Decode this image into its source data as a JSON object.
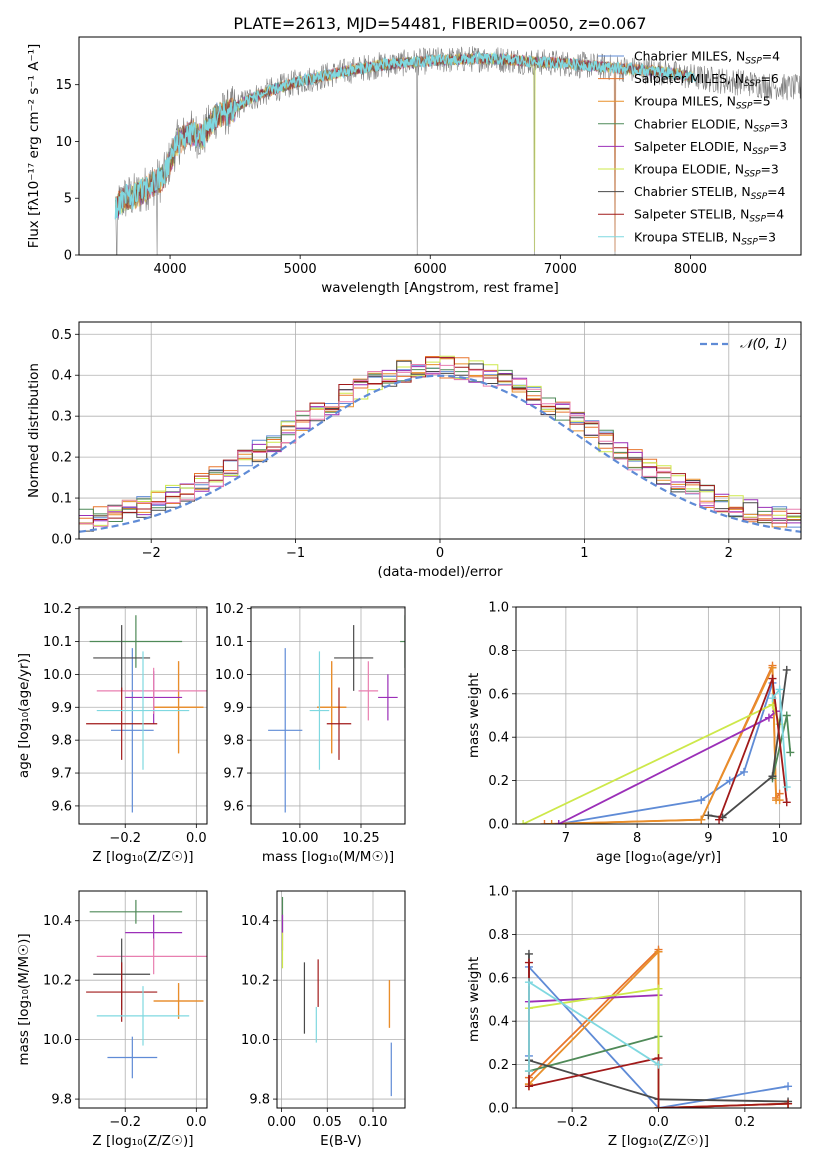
{
  "figure": {
    "title": "PLATE=2613, MJD=54481, FIBERID=0050, z=0.067"
  },
  "colors": {
    "series": [
      "#5f8bd6",
      "#e8762e",
      "#e88f2a",
      "#4f8a58",
      "#9b2fb8",
      "#cde84a",
      "#4a4a4a",
      "#a11a1a",
      "#7fd8e0"
    ],
    "data_spectrum": "#808080",
    "grid": "#b0b0b0",
    "normal_curve": "#5f8bd6",
    "pink": "#e87fb0"
  },
  "chart_data": [
    {
      "id": "spectrum",
      "type": "line",
      "xlabel": "wavelength [Angstrom, rest frame]",
      "ylabel": "Flux [fλ10⁻¹⁷ erg cm⁻² s⁻¹ A⁻¹]",
      "xlim": [
        3300,
        8850
      ],
      "ylim": [
        0,
        19.2
      ],
      "xticks": [
        4000,
        5000,
        6000,
        7000,
        8000
      ],
      "yticks": [
        0,
        5,
        10,
        15
      ],
      "grid": false,
      "legend_position": "upper right",
      "continuum": {
        "x": [
          3580,
          3650,
          3750,
          3850,
          3950,
          4050,
          4150,
          4250,
          4350,
          4450,
          4600,
          4800,
          5000,
          5200,
          5400,
          5600,
          5800,
          6000,
          6200,
          6400,
          6600,
          6800,
          7000,
          7200,
          7400,
          7600,
          7800,
          8000,
          8200,
          8400,
          8600,
          8800
        ],
        "y": [
          4.2,
          5.0,
          5.3,
          6.2,
          6.8,
          9.8,
          10.8,
          10.4,
          12.2,
          12.6,
          13.7,
          14.6,
          15.3,
          15.8,
          16.3,
          16.7,
          16.9,
          17.1,
          17.2,
          17.3,
          17.2,
          17.0,
          16.9,
          16.7,
          16.5,
          16.3,
          16.1,
          15.7,
          15.4,
          15.2,
          14.9,
          14.7
        ]
      },
      "series": [
        {
          "name": "Chabrier MILES, N_SSP=4",
          "legend": {
            "base": "Chabrier MILES, N",
            "sub": "SSP",
            "tail": "=4"
          }
        },
        {
          "name": "Salpeter MILES, N_SSP=6",
          "legend": {
            "base": "Salpeter MILES, N",
            "sub": "SSP",
            "tail": "=6"
          }
        },
        {
          "name": "Kroupa MILES, N_SSP=5",
          "legend": {
            "base": "Kroupa MILES, N",
            "sub": "SSP",
            "tail": "=5"
          }
        },
        {
          "name": "Chabrier ELODIE, N_SSP=3",
          "legend": {
            "base": "Chabrier ELODIE, N",
            "sub": "SSP",
            "tail": "=3"
          }
        },
        {
          "name": "Salpeter ELODIE, N_SSP=3",
          "legend": {
            "base": "Salpeter ELODIE, N",
            "sub": "SSP",
            "tail": "=3"
          }
        },
        {
          "name": "Kroupa ELODIE, N_SSP=3",
          "legend": {
            "base": "Kroupa ELODIE, N",
            "sub": "SSP",
            "tail": "=3"
          }
        },
        {
          "name": "Chabrier STELIB, N_SSP=4",
          "legend": {
            "base": "Chabrier STELIB, N",
            "sub": "SSP",
            "tail": "=4"
          }
        },
        {
          "name": "Salpeter STELIB, N_SSP=4",
          "legend": {
            "base": "Salpeter STELIB, N",
            "sub": "SSP",
            "tail": "=4"
          }
        },
        {
          "name": "Kroupa STELIB, N_SSP=3",
          "legend": {
            "base": "Kroupa STELIB, N",
            "sub": "SSP",
            "tail": "=3"
          }
        }
      ],
      "deep_lines": [
        {
          "x": 3590,
          "y": 0
        },
        {
          "x": 3900,
          "y": 0
        },
        {
          "x": 5900,
          "y": 0
        },
        {
          "x": 6800,
          "y": 0
        },
        {
          "x": 7420,
          "y": 0
        }
      ]
    },
    {
      "id": "residuals",
      "type": "line",
      "xlabel": "(data-model)/error",
      "ylabel": "Normed distribution",
      "xlim": [
        -2.5,
        2.5
      ],
      "ylim": [
        0,
        0.53
      ],
      "xticks": [
        -2,
        -1,
        0,
        1,
        2
      ],
      "yticks": [
        0.0,
        0.1,
        0.2,
        0.3,
        0.4,
        0.5
      ],
      "grid": true,
      "legend_position": "upper right",
      "normal_curve": {
        "name": "𝒩(0, 1)",
        "mean": 0,
        "sigma": 1
      },
      "bin_width": 0.1,
      "n_series": 9
    },
    {
      "id": "age-vs-Z",
      "type": "scatter",
      "xlabel": "Z [log₁₀(Z/Z☉)]",
      "ylabel": "age  [log₁₀(age/yr)]",
      "xlim": [
        -0.33,
        0.03
      ],
      "ylim": [
        9.545,
        10.205
      ],
      "xticks": [
        -0.2,
        0.0
      ],
      "yticks": [
        9.6,
        9.7,
        9.8,
        9.9,
        10.0,
        10.1,
        10.2
      ],
      "grid": true,
      "points": [
        {
          "x": -0.18,
          "y": 9.83,
          "xerr": 0.06,
          "yerr": 0.25
        },
        {
          "x": -0.05,
          "y": 9.9,
          "xerr": 0.07,
          "yerr": 0.14
        },
        {
          "x": -0.05,
          "y": 9.9,
          "xerr": 0.07,
          "yerr": 0.14
        },
        {
          "x": -0.17,
          "y": 10.1,
          "xerr": 0.13,
          "yerr": 0.08
        },
        {
          "x": -0.12,
          "y": 9.93,
          "xerr": 0.08,
          "yerr": 0.08
        },
        {
          "x": -0.12,
          "y": 9.95,
          "xerr": 0.16,
          "yerr": 0.07
        },
        {
          "x": -0.21,
          "y": 10.05,
          "xerr": 0.08,
          "yerr": 0.1
        },
        {
          "x": -0.21,
          "y": 9.85,
          "xerr": 0.1,
          "yerr": 0.11
        },
        {
          "x": -0.15,
          "y": 9.89,
          "xerr": 0.13,
          "yerr": 0.18
        }
      ]
    },
    {
      "id": "age-vs-mass",
      "type": "scatter",
      "xlabel": "mass [log₁₀(M/M☉)]",
      "ylabel": "",
      "xlim": [
        9.8,
        10.43
      ],
      "ylim": [
        9.545,
        10.205
      ],
      "xticks": [
        10.0,
        10.25
      ],
      "xticklabels": [
        "10.00",
        "10.25"
      ],
      "yticks": [
        9.6,
        9.7,
        9.8,
        9.9,
        10.0,
        10.1,
        10.2
      ],
      "grid": true,
      "points": [
        {
          "x": 9.94,
          "y": 9.83,
          "xerr": 0.07,
          "yerr": 0.25
        },
        {
          "x": 10.13,
          "y": 9.9,
          "xerr": 0.06,
          "yerr": 0.14
        },
        {
          "x": 10.13,
          "y": 9.9,
          "xerr": 0.06,
          "yerr": 0.14
        },
        {
          "x": 10.43,
          "y": 10.1,
          "xerr": 0.02,
          "yerr": 0.08
        },
        {
          "x": 10.36,
          "y": 9.93,
          "xerr": 0.04,
          "yerr": 0.07
        },
        {
          "x": 10.28,
          "y": 9.95,
          "xerr": 0.04,
          "yerr": 0.09
        },
        {
          "x": 10.22,
          "y": 10.05,
          "xerr": 0.08,
          "yerr": 0.1
        },
        {
          "x": 10.16,
          "y": 9.85,
          "xerr": 0.05,
          "yerr": 0.11
        },
        {
          "x": 10.08,
          "y": 9.89,
          "xerr": 0.04,
          "yerr": 0.18
        }
      ]
    },
    {
      "id": "weight-vs-age",
      "type": "line",
      "xlabel": "age  [log₁₀(age/yr)]",
      "ylabel": "mass weight",
      "xlim": [
        6.3,
        10.3
      ],
      "ylim": [
        0.0,
        1.0
      ],
      "xticks": [
        7,
        8,
        9,
        10
      ],
      "yticks": [
        0.0,
        0.2,
        0.4,
        0.6,
        0.8,
        1.0
      ],
      "grid": true,
      "series": [
        {
          "x": [
            6.9,
            8.9,
            9.3,
            9.5,
            9.9
          ],
          "y": [
            0.0,
            0.11,
            0.2,
            0.24,
            0.65
          ]
        },
        {
          "x": [
            6.7,
            8.9,
            9.9,
            9.95,
            10.0
          ],
          "y": [
            0.0,
            0.02,
            0.73,
            0.12,
            0.14
          ]
        },
        {
          "x": [
            6.8,
            8.9,
            9.9,
            9.95,
            10.0
          ],
          "y": [
            0.0,
            0.02,
            0.72,
            0.11,
            0.11
          ]
        },
        {
          "x": [
            9.9,
            10.1,
            10.15
          ],
          "y": [
            0.21,
            0.5,
            0.33
          ]
        },
        {
          "x": [
            6.9,
            9.85,
            9.95
          ],
          "y": [
            0.0,
            0.49,
            0.52
          ]
        },
        {
          "x": [
            6.4,
            9.9,
            10.0
          ],
          "y": [
            0.0,
            0.55,
            0.46
          ]
        },
        {
          "x": [
            9.0,
            9.2,
            9.9,
            10.1
          ],
          "y": [
            0.04,
            0.03,
            0.22,
            0.71
          ]
        },
        {
          "x": [
            9.15,
            9.9,
            10.1
          ],
          "y": [
            0.02,
            0.67,
            0.1
          ]
        },
        {
          "x": [
            9.9,
            10.0,
            10.1
          ],
          "y": [
            0.58,
            0.62,
            0.17
          ]
        }
      ]
    },
    {
      "id": "mass-vs-Z",
      "type": "scatter",
      "xlabel": "Z [log₁₀(Z/Z☉)]",
      "ylabel": "mass [log₁₀(M/M☉)]",
      "xlim": [
        -0.33,
        0.03
      ],
      "ylim": [
        9.77,
        10.5
      ],
      "xticks": [
        -0.2,
        0.0
      ],
      "yticks": [
        9.8,
        10.0,
        10.2,
        10.4
      ],
      "grid": true,
      "points": [
        {
          "x": -0.18,
          "y": 9.94,
          "xerr": 0.07,
          "yerr": 0.07
        },
        {
          "x": -0.05,
          "y": 10.13,
          "xerr": 0.07,
          "yerr": 0.06
        },
        {
          "x": -0.05,
          "y": 10.13,
          "xerr": 0.07,
          "yerr": 0.06
        },
        {
          "x": -0.17,
          "y": 10.43,
          "xerr": 0.13,
          "yerr": 0.04
        },
        {
          "x": -0.12,
          "y": 10.36,
          "xerr": 0.08,
          "yerr": 0.06
        },
        {
          "x": -0.12,
          "y": 10.28,
          "xerr": 0.16,
          "yerr": 0.06
        },
        {
          "x": -0.21,
          "y": 10.22,
          "xerr": 0.08,
          "yerr": 0.12
        },
        {
          "x": -0.21,
          "y": 10.16,
          "xerr": 0.1,
          "yerr": 0.1
        },
        {
          "x": -0.15,
          "y": 10.08,
          "xerr": 0.13,
          "yerr": 0.1
        }
      ]
    },
    {
      "id": "mass-vs-EBV",
      "type": "scatter",
      "xlabel": "E(B-V)",
      "ylabel": "",
      "xlim": [
        -0.005,
        0.135
      ],
      "ylim": [
        9.77,
        10.5
      ],
      "xticks": [
        0.0,
        0.05,
        0.1
      ],
      "xticklabels": [
        "0.00",
        "0.05",
        "0.10"
      ],
      "yticks": [
        9.8,
        10.0,
        10.2,
        10.4
      ],
      "grid": true,
      "points": [
        {
          "x": 0.12,
          "y": 9.9,
          "xerr": 0.0,
          "yerr": 0.09
        },
        {
          "x": 0.118,
          "y": 10.12,
          "xerr": 0.0,
          "yerr": 0.08
        },
        {
          "x": 0.118,
          "y": 10.12,
          "xerr": 0.0,
          "yerr": 0.08
        },
        {
          "x": 0.001,
          "y": 10.42,
          "xerr": 0.0,
          "yerr": 0.06
        },
        {
          "x": 0.001,
          "y": 10.36,
          "xerr": 0.0,
          "yerr": 0.06
        },
        {
          "x": 0.001,
          "y": 10.3,
          "xerr": 0.0,
          "yerr": 0.06
        },
        {
          "x": 0.025,
          "y": 10.14,
          "xerr": 0.0,
          "yerr": 0.12
        },
        {
          "x": 0.04,
          "y": 10.19,
          "xerr": 0.0,
          "yerr": 0.08
        },
        {
          "x": 0.038,
          "y": 10.05,
          "xerr": 0.0,
          "yerr": 0.06
        }
      ]
    },
    {
      "id": "weight-vs-Z",
      "type": "line",
      "xlabel": "Z [log₁₀(Z/Z☉)]",
      "ylabel": "mass weight",
      "xlim": [
        -0.33,
        0.33
      ],
      "ylim": [
        0.0,
        1.0
      ],
      "xticks": [
        -0.2,
        0.0,
        0.2
      ],
      "yticks": [
        0.0,
        0.2,
        0.4,
        0.6,
        0.8,
        1.0
      ],
      "grid": true,
      "series": [
        {
          "x": [
            -0.3,
            -0.3,
            0.0,
            0.3
          ],
          "y": [
            0.24,
            0.65,
            0.0,
            0.1
          ]
        },
        {
          "x": [
            -0.3,
            -0.3,
            0.0,
            0.0,
            0.3
          ],
          "y": [
            0.1,
            0.14,
            0.73,
            0.0,
            0.02
          ]
        },
        {
          "x": [
            -0.3,
            -0.3,
            0.0,
            0.0,
            0.3
          ],
          "y": [
            0.11,
            0.11,
            0.72,
            0.0,
            0.02
          ]
        },
        {
          "x": [
            -0.3,
            0.0,
            0.0
          ],
          "y": [
            0.17,
            0.33,
            0.2
          ]
        },
        {
          "x": [
            -0.3,
            0.0
          ],
          "y": [
            0.49,
            0.52
          ]
        },
        {
          "x": [
            -0.3,
            0.0,
            0.0
          ],
          "y": [
            0.46,
            0.55,
            0.0
          ]
        },
        {
          "x": [
            -0.3,
            -0.3,
            0.0,
            0.3
          ],
          "y": [
            0.71,
            0.22,
            0.04,
            0.03
          ]
        },
        {
          "x": [
            -0.3,
            -0.3,
            0.0,
            0.0,
            0.3
          ],
          "y": [
            0.67,
            0.1,
            0.23,
            0.0,
            0.02
          ]
        },
        {
          "x": [
            -0.3,
            -0.3,
            0.0
          ],
          "y": [
            0.17,
            0.58,
            0.2
          ]
        }
      ]
    }
  ]
}
